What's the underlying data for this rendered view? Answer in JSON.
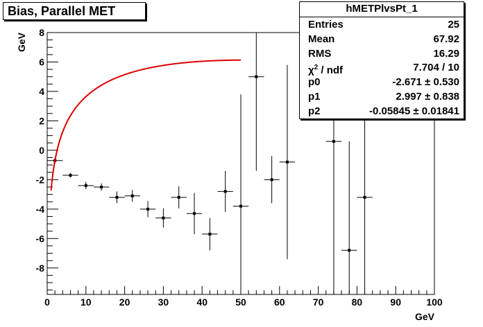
{
  "chart_data": {
    "type": "scatter",
    "title": "Bias, Parallel MET",
    "xlabel": "GeV",
    "ylabel": "GeV",
    "xlim": [
      0,
      100
    ],
    "ylim": [
      -9.8,
      8
    ],
    "xticks": [
      0,
      10,
      20,
      30,
      40,
      50,
      60,
      70,
      80,
      90,
      100
    ],
    "yticks": [
      -8,
      -6,
      -4,
      -2,
      0,
      2,
      4,
      6,
      8
    ],
    "grid": false,
    "points": [
      {
        "x": 2,
        "y": -0.7,
        "xerr": 2,
        "yerr": 0.2
      },
      {
        "x": 6,
        "y": -1.7,
        "xerr": 2,
        "yerr": 0.15
      },
      {
        "x": 10,
        "y": -2.4,
        "xerr": 2,
        "yerr": 0.25
      },
      {
        "x": 14,
        "y": -2.5,
        "xerr": 2,
        "yerr": 0.25
      },
      {
        "x": 18,
        "y": -3.2,
        "xerr": 2,
        "yerr": 0.4
      },
      {
        "x": 22,
        "y": -3.1,
        "xerr": 2,
        "yerr": 0.4
      },
      {
        "x": 26,
        "y": -4.0,
        "xerr": 2,
        "yerr": 0.55
      },
      {
        "x": 30,
        "y": -4.6,
        "xerr": 2,
        "yerr": 0.65
      },
      {
        "x": 34,
        "y": -3.2,
        "xerr": 2,
        "yerr": 0.75
      },
      {
        "x": 38,
        "y": -4.3,
        "xerr": 2,
        "yerr": 1.4
      },
      {
        "x": 42,
        "y": -5.7,
        "xerr": 2,
        "yerr": 1.1
      },
      {
        "x": 46,
        "y": -2.8,
        "xerr": 2,
        "yerr": 1.4
      },
      {
        "x": 50,
        "y": -3.8,
        "xerr": 2,
        "yerr": 7.6
      },
      {
        "x": 54,
        "y": 5.0,
        "xerr": 2,
        "yerr": 6.4
      },
      {
        "x": 58,
        "y": -2.0,
        "xerr": 2,
        "yerr": 1.6
      },
      {
        "x": 62,
        "y": -0.8,
        "xerr": 2,
        "yerr": 6.6
      },
      {
        "x": 74,
        "y": 0.6,
        "xerr": 2,
        "yerr": 10.4
      },
      {
        "x": 78,
        "y": -6.8,
        "xerr": 2,
        "yerr": 7.4
      },
      {
        "x": 82,
        "y": -3.2,
        "xerr": 2,
        "yerr": 7.2
      }
    ],
    "fit": {
      "color": "#dd0000",
      "x_range": [
        1,
        50
      ],
      "p0": -2.671,
      "p1": 2.997,
      "p2": -0.05845
    },
    "stats": {
      "name": "hMETPlvsPt_1",
      "rows": [
        {
          "label": "Entries",
          "value": "25"
        },
        {
          "label": "Mean",
          "value": "67.92"
        },
        {
          "label": "RMS",
          "value": "16.29"
        },
        {
          "label": "χ",
          "sup": "2",
          "suffix": " / ndf",
          "value": "7.704 / 10"
        },
        {
          "label": "p0",
          "value": "-2.671 ± 0.530"
        },
        {
          "label": "p1",
          "value": "2.997 ± 0.838"
        },
        {
          "label": "p2",
          "value": "-0.05845 ± 0.01841"
        }
      ]
    }
  }
}
